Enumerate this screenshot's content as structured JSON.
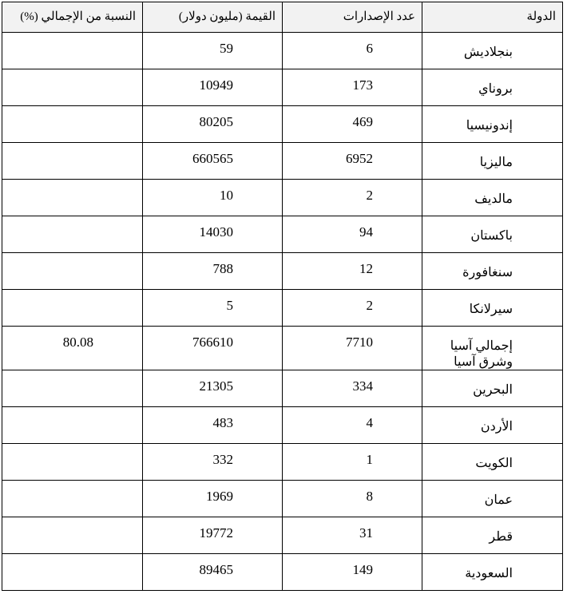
{
  "headers": {
    "country": "الدولة",
    "issues": "عدد الإصدارات",
    "value": "القيمة (مليون دولار)",
    "share": "النسبة من الإجمالي (%)"
  },
  "rows": [
    {
      "country": "بنجلاديش",
      "issues": "6",
      "value": "59",
      "share": ""
    },
    {
      "country": "بروناي",
      "issues": "173",
      "value": "10949",
      "share": ""
    },
    {
      "country": "إندونيسيا",
      "issues": "469",
      "value": "80205",
      "share": ""
    },
    {
      "country": "ماليزيا",
      "issues": "6952",
      "value": "660565",
      "share": ""
    },
    {
      "country": "مالديف",
      "issues": "2",
      "value": "10",
      "share": ""
    },
    {
      "country": "باكستان",
      "issues": "94",
      "value": "14030",
      "share": ""
    },
    {
      "country": "سنغافورة",
      "issues": "12",
      "value": "788",
      "share": ""
    },
    {
      "country": "سيرلانكا",
      "issues": "2",
      "value": "5",
      "share": ""
    },
    {
      "country": "إجمالي آسيا وشرق آسيا",
      "issues": "7710",
      "value": "766610",
      "share": "80.08"
    },
    {
      "country": "البحرين",
      "issues": "334",
      "value": "21305",
      "share": ""
    },
    {
      "country": "الأردن",
      "issues": "4",
      "value": "483",
      "share": ""
    },
    {
      "country": "الكويت",
      "issues": "1",
      "value": "332",
      "share": ""
    },
    {
      "country": "عمان",
      "issues": "8",
      "value": "1969",
      "share": ""
    },
    {
      "country": "قطر",
      "issues": "31",
      "value": "19772",
      "share": ""
    },
    {
      "country": "السعودية",
      "issues": "149",
      "value": "89465",
      "share": ""
    }
  ]
}
